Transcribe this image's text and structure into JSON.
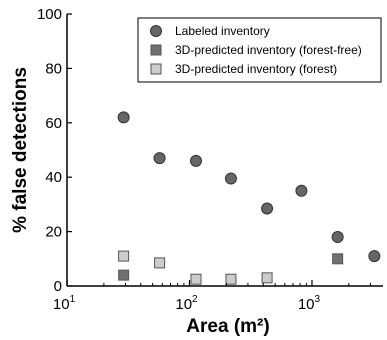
{
  "chart_data": {
    "type": "scatter",
    "xlabel": "Area (m²)",
    "ylabel": "% false detections",
    "xscale": "log",
    "xlim": [
      10,
      3800
    ],
    "ylim": [
      0,
      100
    ],
    "x_ticks": [
      {
        "base": "10",
        "exp": "1",
        "value": 10
      },
      {
        "base": "10",
        "exp": "2",
        "value": 100
      },
      {
        "base": "10",
        "exp": "3",
        "value": 1000
      }
    ],
    "y_ticks": [
      0,
      20,
      40,
      60,
      80,
      100
    ],
    "grid": false,
    "legend_position": "top-right",
    "series": [
      {
        "name": "Labeled inventory",
        "marker": "circle",
        "color": "#666666",
        "points": [
          {
            "x": 29,
            "y": 62
          },
          {
            "x": 57,
            "y": 47
          },
          {
            "x": 113,
            "y": 46
          },
          {
            "x": 218,
            "y": 39.5
          },
          {
            "x": 430,
            "y": 28.5
          },
          {
            "x": 820,
            "y": 35
          },
          {
            "x": 1620,
            "y": 18
          },
          {
            "x": 3230,
            "y": 11
          }
        ]
      },
      {
        "name": "3D-predicted inventory (forest-free)",
        "marker": "square",
        "color": "#707070",
        "points": [
          {
            "x": 29,
            "y": 4
          },
          {
            "x": 1620,
            "y": 10
          }
        ]
      },
      {
        "name": "3D-predicted inventory (forest)",
        "marker": "square",
        "color": "#cccccc",
        "points": [
          {
            "x": 29,
            "y": 11
          },
          {
            "x": 57,
            "y": 8.5
          },
          {
            "x": 113,
            "y": 2.5
          },
          {
            "x": 218,
            "y": 2.5
          },
          {
            "x": 430,
            "y": 3
          }
        ]
      }
    ]
  }
}
